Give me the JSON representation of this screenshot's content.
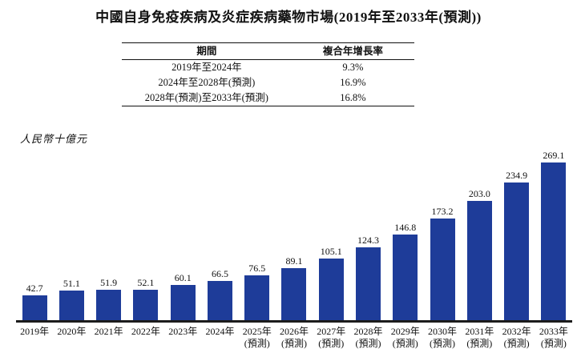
{
  "title": "中國自身免疫疾病及炎症疾病藥物市場(2019年至2033年(預測))",
  "table": {
    "headers": {
      "period": "期間",
      "cagr": "複合年增長率"
    },
    "rows": [
      {
        "period": "2019年至2024年",
        "cagr": "9.3%"
      },
      {
        "period": "2024年至2028年(預測)",
        "cagr": "16.9%"
      },
      {
        "period": "2028年(預測)至2033年(預測)",
        "cagr": "16.8%"
      }
    ]
  },
  "chart_data": {
    "type": "bar",
    "title": "中國自身免疫疾病及炎症疾病藥物市場(2019年至2033年(預測))",
    "unit_label": "人民幣十億元",
    "categories": [
      "2019年",
      "2020年",
      "2021年",
      "2022年",
      "2023年",
      "2024年",
      "2025年\n(預測)",
      "2026年\n(預測)",
      "2027年\n(預測)",
      "2028年\n(預測)",
      "2029年\n(預測)",
      "2030年\n(預測)",
      "2031年\n(預測)",
      "2032年\n(預測)",
      "2033年\n(預測)"
    ],
    "values": [
      42.7,
      51.1,
      51.9,
      52.1,
      60.1,
      66.5,
      76.5,
      89.1,
      105.1,
      124.3,
      146.8,
      173.2,
      203.0,
      234.9,
      269.1
    ],
    "value_label_decimals": 1,
    "bar_color": "#1e3c99",
    "axis_color": "#1c1c1c",
    "ylim": [
      0,
      280
    ],
    "grid": false,
    "legend": "none",
    "value_labels_position": "above-bars"
  }
}
